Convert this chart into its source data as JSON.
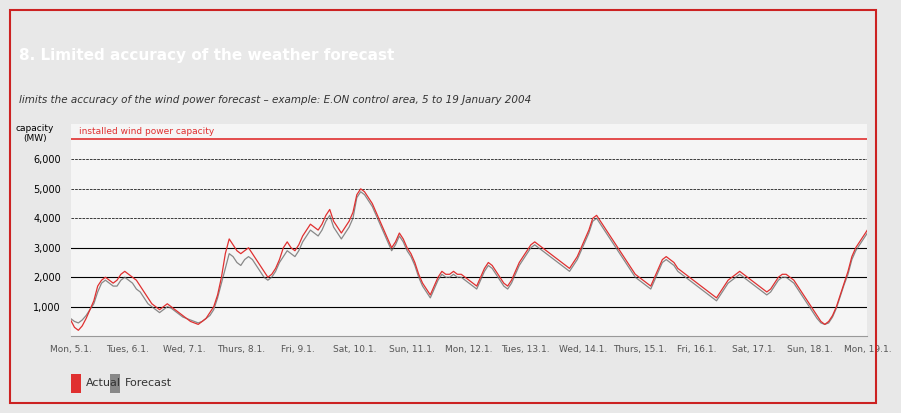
{
  "title": "8. Limited accuracy of the weather forecast",
  "subtitle": "limits the accuracy of the wind power forecast – example: E.ON control area, 5 to 19 January 2004",
  "ylabel": "capacity\n(MW)",
  "capacity_label": "installed wind power capacity",
  "installed_capacity": 6700,
  "ylim": [
    0,
    7200
  ],
  "yticks": [
    0,
    1000,
    2000,
    3000,
    4000,
    5000,
    6000
  ],
  "ytick_labels": [
    "",
    "1,000",
    "2,000",
    "3,000",
    "4,000",
    "5,000",
    "6,000"
  ],
  "xtick_labels": [
    "Mon, 5.1.",
    "Tues, 6.1.",
    "Wed, 7.1.",
    "Thurs, 8.1.",
    "Fri, 9.1.",
    "Sat, 10.1.",
    "Sun, 11.1.",
    "Mon, 12.1.",
    "Tues, 13.1.",
    "Wed, 14.1.",
    "Thurs, 15.1.",
    "Fri, 16.1.",
    "Sat, 17.1.",
    "Sun, 18.1.",
    "Mon, 19.1."
  ],
  "title_bg_color": "#cc2222",
  "subtitle_bg_color": "#e0e0e0",
  "plot_bg_color": "#f5f5f5",
  "outer_bg_color": "#e8e8e8",
  "actual_color": "#e03030",
  "forecast_color": "#888888",
  "capacity_line_color": "#e03030",
  "grid_color": "#000000",
  "title_text_color": "#ffffff",
  "subtitle_text_color": "#333333",
  "actual_data": [
    550,
    300,
    200,
    350,
    600,
    900,
    1200,
    1700,
    1900,
    2000,
    1900,
    1800,
    1900,
    2100,
    2200,
    2100,
    2000,
    1900,
    1700,
    1500,
    1300,
    1100,
    1000,
    900,
    1000,
    1100,
    1000,
    900,
    800,
    700,
    600,
    500,
    450,
    400,
    500,
    600,
    800,
    1000,
    1400,
    2000,
    2800,
    3300,
    3100,
    2900,
    2800,
    2900,
    3000,
    2800,
    2600,
    2400,
    2200,
    2000,
    2100,
    2300,
    2600,
    3000,
    3200,
    3000,
    2900,
    3100,
    3400,
    3600,
    3800,
    3700,
    3600,
    3800,
    4100,
    4300,
    3900,
    3700,
    3500,
    3700,
    3900,
    4200,
    4800,
    5000,
    4900,
    4700,
    4500,
    4200,
    3900,
    3600,
    3300,
    3000,
    3200,
    3500,
    3300,
    3000,
    2800,
    2500,
    2100,
    1800,
    1600,
    1400,
    1700,
    2000,
    2200,
    2100,
    2100,
    2200,
    2100,
    2100,
    2000,
    1900,
    1800,
    1700,
    2000,
    2300,
    2500,
    2400,
    2200,
    2000,
    1800,
    1700,
    1900,
    2200,
    2500,
    2700,
    2900,
    3100,
    3200,
    3100,
    3000,
    2900,
    2800,
    2700,
    2600,
    2500,
    2400,
    2300,
    2500,
    2700,
    3000,
    3300,
    3600,
    4000,
    4100,
    3900,
    3700,
    3500,
    3300,
    3100,
    2900,
    2700,
    2500,
    2300,
    2100,
    2000,
    1900,
    1800,
    1700,
    2000,
    2300,
    2600,
    2700,
    2600,
    2500,
    2300,
    2200,
    2100,
    2000,
    1900,
    1800,
    1700,
    1600,
    1500,
    1400,
    1300,
    1500,
    1700,
    1900,
    2000,
    2100,
    2200,
    2100,
    2000,
    1900,
    1800,
    1700,
    1600,
    1500,
    1600,
    1800,
    2000,
    2100,
    2100,
    2000,
    1900,
    1700,
    1500,
    1300,
    1100,
    900,
    700,
    500,
    400,
    500,
    700,
    1000,
    1400,
    1800,
    2200,
    2700,
    3000,
    3200,
    3400,
    3600
  ],
  "forecast_data": [
    600,
    500,
    450,
    550,
    700,
    900,
    1100,
    1500,
    1800,
    1900,
    1800,
    1700,
    1700,
    1900,
    2000,
    1900,
    1800,
    1600,
    1500,
    1300,
    1100,
    1000,
    900,
    800,
    900,
    1000,
    950,
    850,
    750,
    650,
    600,
    550,
    500,
    450,
    500,
    600,
    700,
    900,
    1300,
    1800,
    2300,
    2800,
    2700,
    2500,
    2400,
    2600,
    2700,
    2600,
    2400,
    2200,
    2000,
    1900,
    2000,
    2200,
    2500,
    2700,
    2900,
    2800,
    2700,
    2900,
    3200,
    3400,
    3600,
    3500,
    3400,
    3600,
    3900,
    4100,
    3700,
    3500,
    3300,
    3500,
    3700,
    4000,
    4700,
    4900,
    4800,
    4600,
    4400,
    4100,
    3800,
    3500,
    3200,
    2900,
    3100,
    3400,
    3200,
    2900,
    2700,
    2400,
    2000,
    1700,
    1500,
    1300,
    1600,
    1900,
    2100,
    2000,
    2000,
    2100,
    2000,
    2000,
    1900,
    1800,
    1700,
    1600,
    1900,
    2200,
    2400,
    2300,
    2100,
    1900,
    1700,
    1600,
    1800,
    2100,
    2400,
    2600,
    2800,
    3000,
    3100,
    3000,
    2900,
    2800,
    2700,
    2600,
    2500,
    2400,
    2300,
    2200,
    2400,
    2600,
    2900,
    3200,
    3500,
    3900,
    4000,
    3800,
    3600,
    3400,
    3200,
    3000,
    2800,
    2600,
    2400,
    2200,
    2000,
    1900,
    1800,
    1700,
    1600,
    1900,
    2200,
    2500,
    2600,
    2500,
    2400,
    2200,
    2100,
    2000,
    1900,
    1800,
    1700,
    1600,
    1500,
    1400,
    1300,
    1200,
    1400,
    1600,
    1800,
    1900,
    2000,
    2100,
    2000,
    1900,
    1800,
    1700,
    1600,
    1500,
    1400,
    1500,
    1700,
    1900,
    2000,
    2000,
    1900,
    1800,
    1600,
    1400,
    1200,
    1000,
    800,
    600,
    450,
    400,
    450,
    650,
    950,
    1350,
    1750,
    2100,
    2600,
    2900,
    3100,
    3300,
    3500
  ]
}
